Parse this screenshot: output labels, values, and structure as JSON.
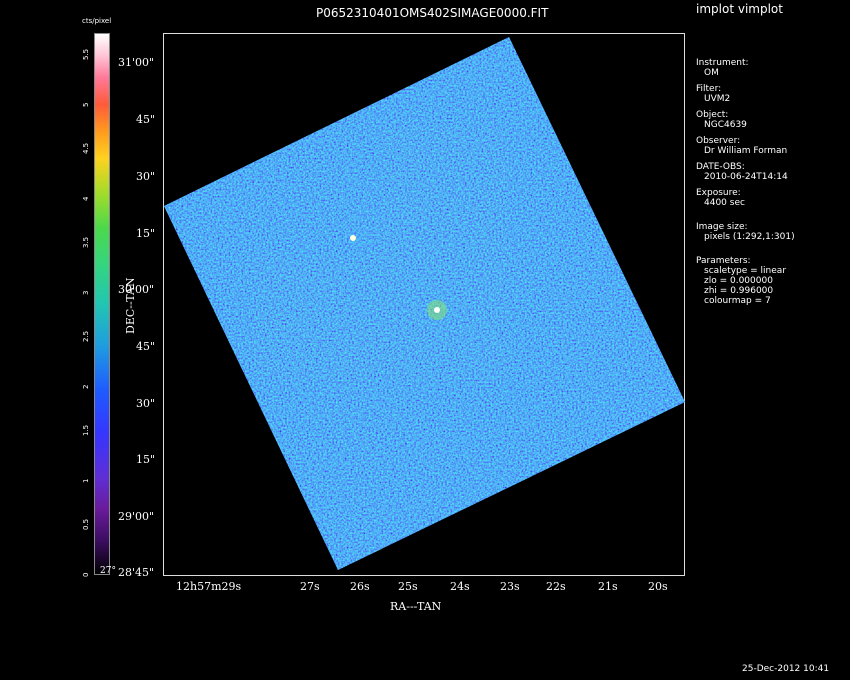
{
  "app": {
    "title": "implot vimplot"
  },
  "plot": {
    "filename": "P0652310401OMS402SIMAGE0000.FIT",
    "xlabel": "RA---TAN",
    "ylabel": "DEC--TAN"
  },
  "colorbar": {
    "label": "cts/pixel",
    "ticks": [
      "0",
      "0.5",
      "1",
      "1.5",
      "2",
      "2.5",
      "3",
      "3.5",
      "4",
      "4.5",
      "5",
      "5.5"
    ]
  },
  "yaxis": {
    "ticks": [
      "31'00\"",
      "45\"",
      "30\"",
      "15\"",
      "30'00\"",
      "45\"",
      "30\"",
      "15\"",
      "29'00\"",
      "28'45\""
    ],
    "corner_prefix": "27°"
  },
  "xaxis": {
    "ticks": [
      "12h57m29s",
      "27s",
      "26s",
      "25s",
      "24s",
      "23s",
      "22s",
      "21s",
      "20s"
    ]
  },
  "info": [
    {
      "head": "Instrument:",
      "value": "OM"
    },
    {
      "head": "Filter:",
      "value": "UVM2"
    },
    {
      "head": "Object:",
      "value": "NGC4639"
    },
    {
      "head": "Observer:",
      "value": "Dr William Forman"
    },
    {
      "head": "DATE-OBS:",
      "value": "2010-06-24T14:14"
    },
    {
      "head": "Exposure:",
      "value": "4400 sec"
    },
    {
      "head": "Image size:",
      "value": "pixels (1:292,1:301)"
    }
  ],
  "parameters": {
    "head": "Parameters:",
    "lines": [
      "scaletype = linear",
      "zlo = 0.000000",
      "zhi = 0.996000",
      "colourmap =   7"
    ]
  },
  "footer": {
    "timestamp": "25-Dec-2012 10:41"
  },
  "colors": {
    "frame": "#dddddd",
    "background": "#000000"
  }
}
